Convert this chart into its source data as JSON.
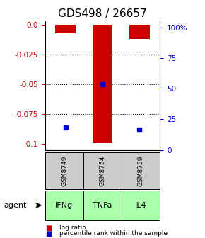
{
  "title": "GDS498 / 26657",
  "samples": [
    "GSM8749",
    "GSM8754",
    "GSM8759"
  ],
  "agents": [
    "IFNg",
    "TNFa",
    "IL4"
  ],
  "log_ratios": [
    -0.007,
    -0.099,
    -0.012
  ],
  "percentile_ranks": [
    14,
    50,
    12
  ],
  "ylim_left": [
    -0.105,
    0.003
  ],
  "yticks_left": [
    0.0,
    -0.025,
    -0.05,
    -0.075,
    -0.1
  ],
  "yticks_right": [
    100,
    75,
    50,
    25,
    0
  ],
  "bar_color": "#cc0000",
  "dot_color": "#0000cc",
  "sample_box_color": "#cccccc",
  "agent_box_color": "#aaffaa",
  "title_fontsize": 11,
  "tick_fontsize": 7.5
}
